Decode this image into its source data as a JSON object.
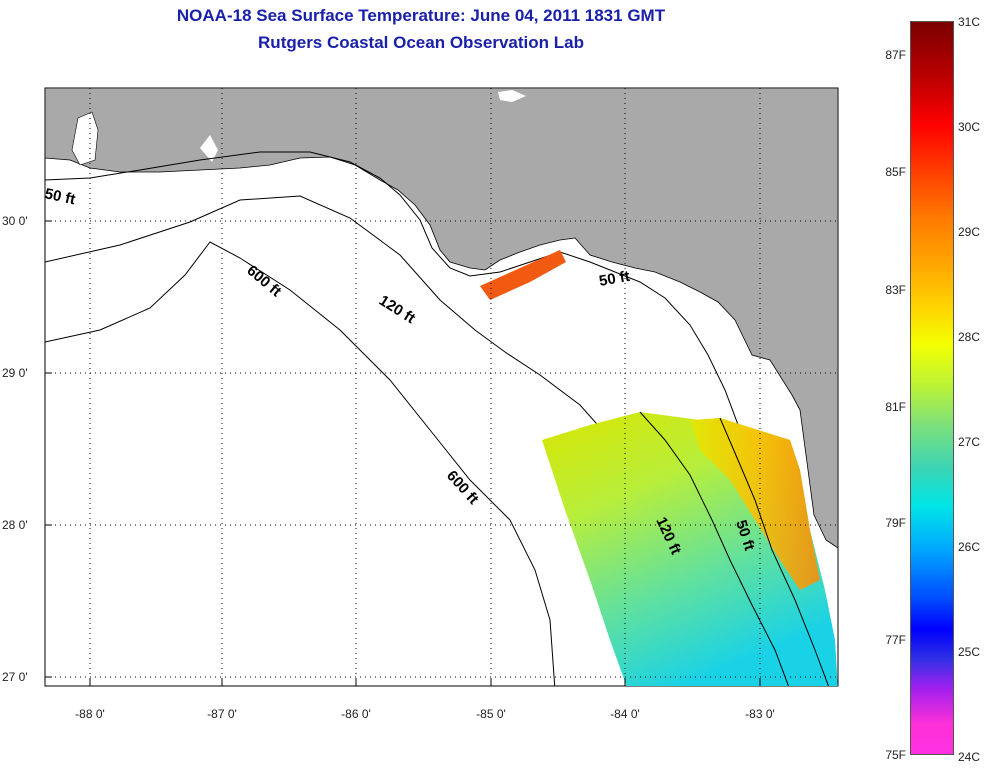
{
  "title": "NOAA-18 Sea Surface Temperature:  June 04, 2011 1831 GMT",
  "subtitle": "Rutgers Coastal Ocean Observation Lab",
  "latitude_labels": [
    "30 0'",
    "29 0'",
    "28 0'",
    "27 0'"
  ],
  "longitude_labels": [
    "-88 0'",
    "-87 0'",
    "-86 0'",
    "-85 0'",
    "-84 0'",
    "-83 0'"
  ],
  "contour_labels": {
    "c50_west": "50 ft",
    "c600_north": "600 ft",
    "c120_north": "120 ft",
    "c50_east": "50 ft",
    "c600_south": "600 ft",
    "c120_south": "120 ft",
    "c50_south": "50 ft"
  },
  "colorbar": {
    "celsius": [
      "31C",
      "30C",
      "29C",
      "28C",
      "27C",
      "26C",
      "25C",
      "24C"
    ],
    "fahrenheit": [
      "87F",
      "85F",
      "83F",
      "81F",
      "79F",
      "77F",
      "75F"
    ]
  },
  "colors": {
    "land": "#a9a9a9",
    "title": "#1a21a8",
    "sst_warm": "#ff7b00",
    "sst_mid": "#e8e800",
    "sst_cool": "#2ad6d0"
  }
}
